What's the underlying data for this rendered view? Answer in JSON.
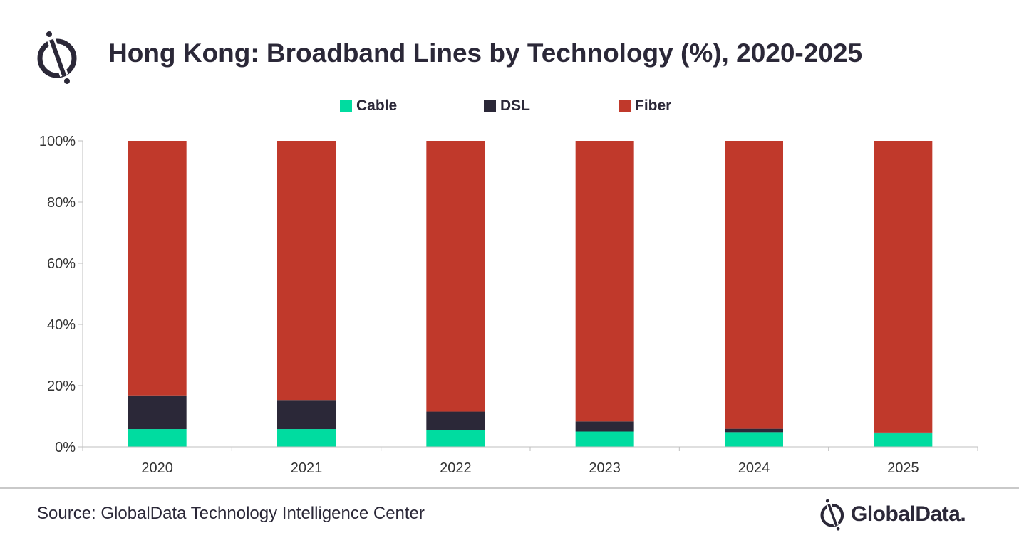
{
  "header": {
    "title": "Hong Kong: Broadband Lines by Technology (%), 2020-2025"
  },
  "footer": {
    "source": "Source: GlobalData Technology Intelligence Center",
    "brand": "GlobalData."
  },
  "colors": {
    "cable": "#00dca0",
    "dsl": "#2b2838",
    "fiber": "#c0392b",
    "axis": "#bfbfbf"
  },
  "chart_data": {
    "type": "bar",
    "stacked": true,
    "title": "Hong Kong: Broadband Lines by Technology (%), 2020-2025",
    "xlabel": "",
    "ylabel": "",
    "ylim": [
      0,
      100
    ],
    "yticks": [
      "0%",
      "20%",
      "40%",
      "60%",
      "80%",
      "100%"
    ],
    "grid": false,
    "legend": "top-center",
    "categories": [
      "2020",
      "2021",
      "2022",
      "2023",
      "2024",
      "2025"
    ],
    "series": [
      {
        "name": "Cable",
        "color": "#00dca0",
        "values": [
          5.8,
          5.8,
          5.5,
          5.0,
          4.8,
          4.4
        ]
      },
      {
        "name": "DSL",
        "color": "#2b2838",
        "values": [
          11.0,
          9.5,
          6.0,
          3.3,
          1.1,
          0.3
        ]
      },
      {
        "name": "Fiber",
        "color": "#c0392b",
        "values": [
          83.2,
          84.7,
          88.5,
          91.7,
          94.1,
          95.3
        ]
      }
    ]
  }
}
